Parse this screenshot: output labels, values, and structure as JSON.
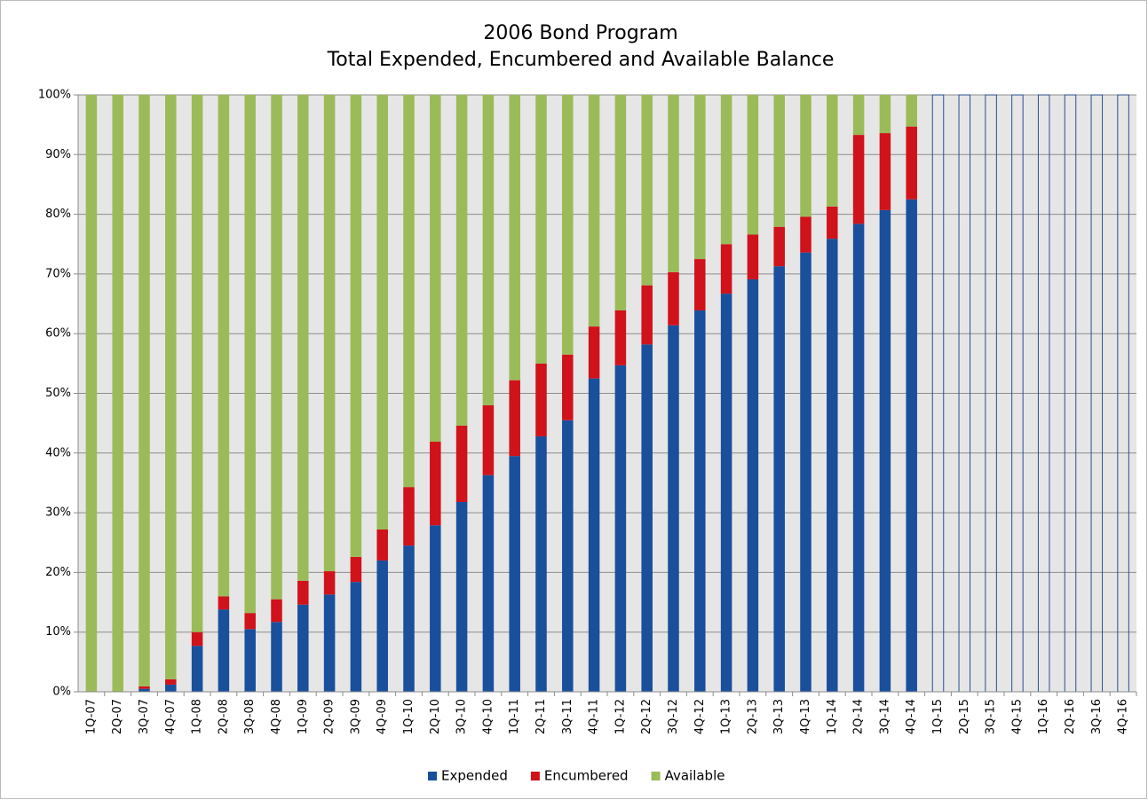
{
  "chart_data": {
    "type": "stacked_bar",
    "title": [
      "2006 Bond Program",
      "Total Expended, Encumbered and Available Balance"
    ],
    "categories": [
      "1Q-07",
      "2Q-07",
      "3Q-07",
      "4Q-07",
      "1Q-08",
      "2Q-08",
      "3Q-08",
      "4Q-08",
      "1Q-09",
      "2Q-09",
      "3Q-09",
      "4Q-09",
      "1Q-10",
      "2Q-10",
      "3Q-10",
      "4Q-10",
      "1Q-11",
      "2Q-11",
      "3Q-11",
      "4Q-11",
      "1Q-12",
      "2Q-12",
      "3Q-12",
      "4Q-12",
      "1Q-13",
      "2Q-13",
      "3Q-13",
      "4Q-13",
      "1Q-14",
      "2Q-14",
      "3Q-14",
      "4Q-14",
      "1Q-15",
      "2Q-15",
      "3Q-15",
      "4Q-15",
      "1Q-16",
      "2Q-16",
      "3Q-16",
      "4Q-16"
    ],
    "series": [
      {
        "name": "Expended",
        "color": "#1a4f9c",
        "values": [
          0,
          0,
          0.5,
          1.2,
          7.7,
          13.8,
          10.5,
          11.7,
          14.6,
          16.3,
          18.4,
          22.0,
          24.5,
          27.9,
          31.8,
          36.3,
          39.5,
          42.8,
          45.5,
          52.5,
          54.7,
          58.2,
          61.4,
          63.9,
          66.7,
          69.1,
          71.3,
          73.6,
          75.9,
          78.4,
          80.7,
          82.5,
          null,
          null,
          null,
          null,
          null,
          null,
          null,
          null
        ]
      },
      {
        "name": "Encumbered",
        "color": "#d0121b",
        "values": [
          0,
          0,
          0.4,
          0.9,
          2.3,
          2.2,
          2.7,
          3.8,
          4.0,
          3.9,
          4.2,
          5.2,
          9.8,
          14.0,
          12.8,
          11.7,
          12.7,
          12.2,
          11.0,
          8.7,
          9.2,
          9.9,
          8.9,
          8.6,
          8.3,
          7.5,
          6.6,
          6.0,
          5.4,
          14.9,
          12.9,
          12.2,
          null,
          null,
          null,
          null,
          null,
          null,
          null,
          null
        ]
      },
      {
        "name": "Available",
        "color": "#9bbb59",
        "values": [
          100,
          100,
          99.1,
          97.9,
          90.0,
          84.0,
          86.8,
          84.5,
          81.4,
          79.8,
          77.4,
          72.8,
          65.7,
          58.1,
          55.4,
          52.0,
          47.8,
          45.0,
          43.5,
          38.8,
          36.1,
          31.9,
          29.7,
          27.5,
          25.0,
          23.4,
          22.1,
          20.4,
          18.7,
          6.7,
          6.4,
          5.3,
          null,
          null,
          null,
          null,
          null,
          null,
          null,
          null
        ]
      }
    ],
    "ylim": [
      0,
      100
    ],
    "yticks": [
      {
        "value": 0,
        "label": "0%"
      },
      {
        "value": 10,
        "label": "10%"
      },
      {
        "value": 20,
        "label": "20%"
      },
      {
        "value": 30,
        "label": "30%"
      },
      {
        "value": 40,
        "label": "40%"
      },
      {
        "value": 50,
        "label": "50%"
      },
      {
        "value": 60,
        "label": "60%"
      },
      {
        "value": 70,
        "label": "70%"
      },
      {
        "value": 80,
        "label": "80%"
      },
      {
        "value": 90,
        "label": "90%"
      },
      {
        "value": 100,
        "label": "100%"
      }
    ],
    "grid": true,
    "legend": "bottom"
  }
}
